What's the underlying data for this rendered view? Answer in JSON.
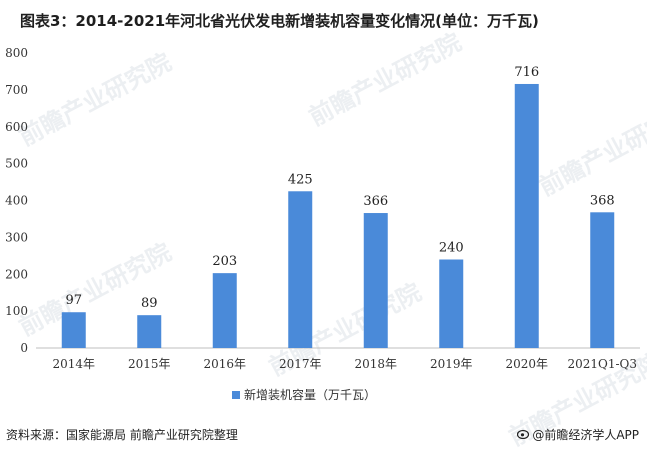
{
  "title": "图表3：2014-2021年河北省光伏发电新增装机容量变化情况(单位：万千瓦)",
  "source": "资料来源：国家能源局 前瞻产业研究院整理",
  "brand": {
    "icon": "weibo-icon",
    "text": "@前瞻经济学人APP"
  },
  "watermark": "前瞻产业研究院",
  "chart_data": {
    "type": "bar",
    "categories": [
      "2014年",
      "2015年",
      "2016年",
      "2017年",
      "2018年",
      "2019年",
      "2020年",
      "2021Q1-Q3"
    ],
    "series": [
      {
        "name": "新增装机容量（万千瓦）",
        "values": [
          97,
          89,
          203,
          425,
          366,
          240,
          716,
          368
        ]
      }
    ],
    "ylim": [
      0,
      800
    ],
    "yticks": [
      0,
      100,
      200,
      300,
      400,
      500,
      600,
      700,
      800
    ],
    "grid": false,
    "legend": "bottom",
    "data_labels": true,
    "bar_color": "#4a8ad9"
  }
}
